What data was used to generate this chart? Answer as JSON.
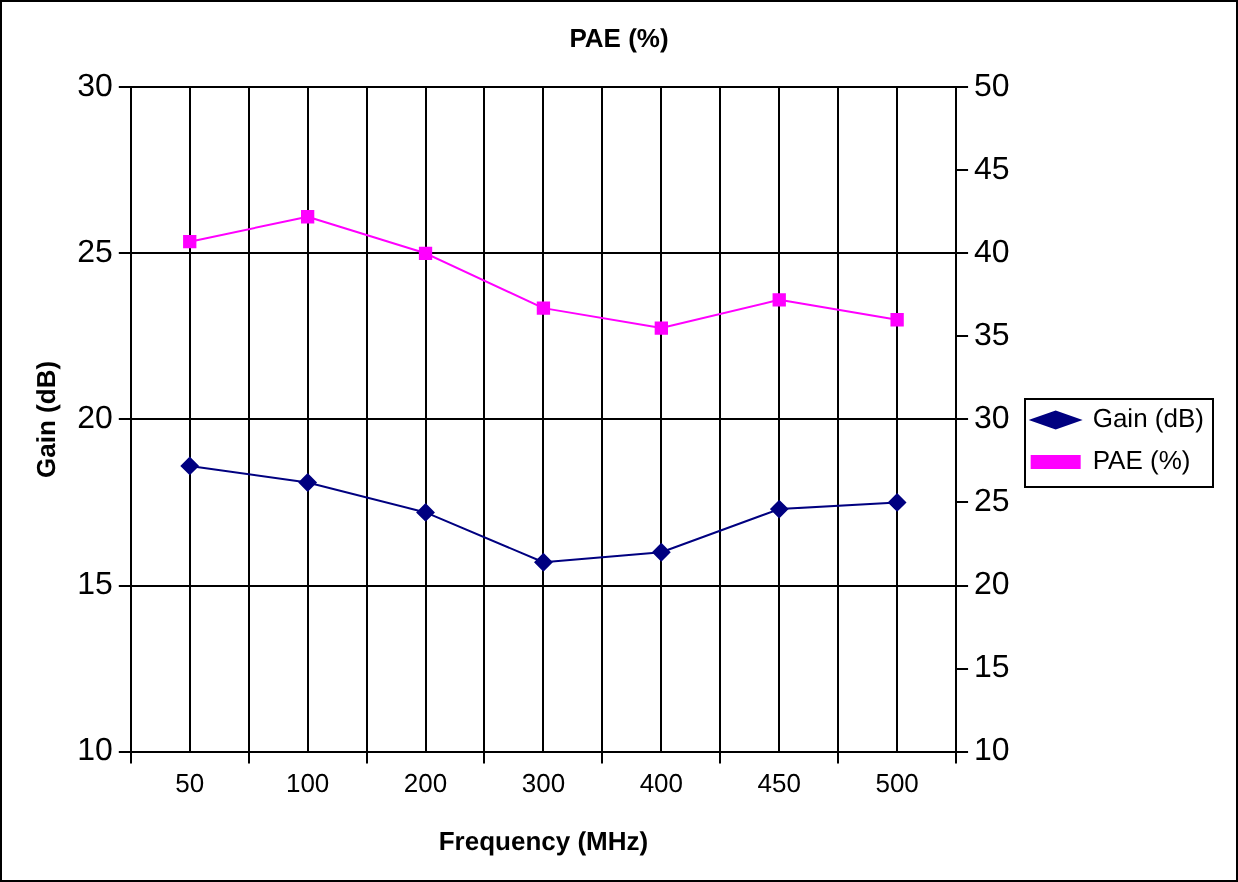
{
  "chart_data": {
    "type": "line",
    "title": "PAE (%)",
    "xlabel": "Frequency (MHz)",
    "ylabel": "Gain (dB)",
    "categories": [
      "50",
      "100",
      "200",
      "300",
      "400",
      "450",
      "500"
    ],
    "series": [
      {
        "name": "Gain (dB)",
        "color": "#000080",
        "marker": "diamond",
        "values": [
          18.6,
          18.1,
          17.2,
          15.7,
          16.0,
          17.3,
          17.5
        ]
      },
      {
        "name": "PAE (%)",
        "color": "#ff00ff",
        "marker": "square",
        "axis": "y2",
        "values": [
          40.7,
          42.2,
          40.0,
          36.7,
          35.5,
          37.2,
          36.0
        ]
      }
    ],
    "ylim": [
      10,
      30
    ],
    "yticks": [
      10,
      15,
      20,
      25,
      30
    ],
    "y2lim": [
      10,
      50
    ],
    "y2ticks": [
      10,
      15,
      20,
      25,
      30,
      35,
      40,
      45,
      50
    ],
    "grid": true,
    "legend": "right",
    "line_style": "solid"
  }
}
